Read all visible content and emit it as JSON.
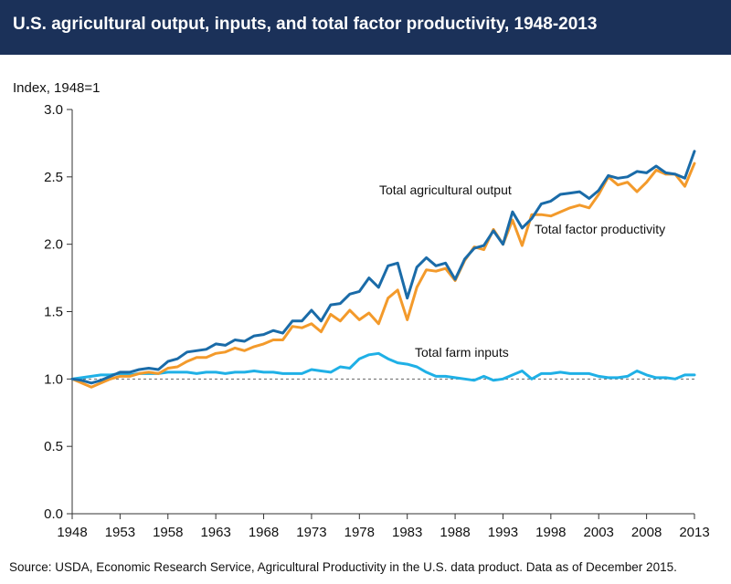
{
  "chart_data": {
    "type": "line",
    "title": "U.S. agricultural output, inputs, and total factor productivity, 1948-2013",
    "ylabel": "Index, 1948=1",
    "xlabel": "",
    "xlim": [
      1948,
      2013
    ],
    "ylim": [
      0,
      3
    ],
    "x_ticks": [
      1948,
      1953,
      1958,
      1963,
      1968,
      1973,
      1978,
      1983,
      1988,
      1993,
      1998,
      2003,
      2008,
      2013
    ],
    "y_ticks": [
      "0.0",
      "0.5",
      "1.0",
      "1.5",
      "2.0",
      "2.5",
      "3.0"
    ],
    "reference_line": 1.0,
    "x": [
      1948,
      1949,
      1950,
      1951,
      1952,
      1953,
      1954,
      1955,
      1956,
      1957,
      1958,
      1959,
      1960,
      1961,
      1962,
      1963,
      1964,
      1965,
      1966,
      1967,
      1968,
      1969,
      1970,
      1971,
      1972,
      1973,
      1974,
      1975,
      1976,
      1977,
      1978,
      1979,
      1980,
      1981,
      1982,
      1983,
      1984,
      1985,
      1986,
      1987,
      1988,
      1989,
      1990,
      1991,
      1992,
      1993,
      1994,
      1995,
      1996,
      1997,
      1998,
      1999,
      2000,
      2001,
      2002,
      2003,
      2004,
      2005,
      2006,
      2007,
      2008,
      2009,
      2010,
      2011,
      2012,
      2013
    ],
    "series": [
      {
        "name": "Total agricultural output",
        "color": "#1a6ba8",
        "values": [
          1.0,
          0.99,
          0.97,
          0.99,
          1.02,
          1.05,
          1.05,
          1.07,
          1.08,
          1.07,
          1.13,
          1.15,
          1.2,
          1.21,
          1.22,
          1.26,
          1.25,
          1.29,
          1.28,
          1.32,
          1.33,
          1.36,
          1.34,
          1.43,
          1.43,
          1.51,
          1.43,
          1.55,
          1.56,
          1.63,
          1.65,
          1.75,
          1.68,
          1.84,
          1.86,
          1.6,
          1.83,
          1.9,
          1.84,
          1.86,
          1.74,
          1.89,
          1.97,
          1.99,
          2.1,
          2.0,
          2.24,
          2.12,
          2.19,
          2.3,
          2.32,
          2.37,
          2.38,
          2.39,
          2.34,
          2.4,
          2.51,
          2.49,
          2.5,
          2.54,
          2.53,
          2.58,
          2.53,
          2.52,
          2.49,
          2.69
        ]
      },
      {
        "name": "Total factor productivity",
        "color": "#f39a2b",
        "values": [
          1.0,
          0.97,
          0.94,
          0.97,
          1.0,
          1.02,
          1.02,
          1.04,
          1.05,
          1.04,
          1.08,
          1.09,
          1.13,
          1.16,
          1.16,
          1.19,
          1.2,
          1.23,
          1.21,
          1.24,
          1.26,
          1.29,
          1.29,
          1.39,
          1.38,
          1.41,
          1.35,
          1.48,
          1.43,
          1.51,
          1.44,
          1.49,
          1.41,
          1.6,
          1.66,
          1.44,
          1.68,
          1.81,
          1.8,
          1.82,
          1.73,
          1.88,
          1.98,
          1.96,
          2.11,
          2.0,
          2.18,
          1.99,
          2.22,
          2.22,
          2.21,
          2.24,
          2.27,
          2.29,
          2.27,
          2.37,
          2.5,
          2.44,
          2.46,
          2.39,
          2.46,
          2.55,
          2.52,
          2.52,
          2.43,
          2.6
        ]
      },
      {
        "name": "Total farm inputs",
        "color": "#1fb0e6",
        "values": [
          1.0,
          1.01,
          1.02,
          1.03,
          1.03,
          1.04,
          1.03,
          1.04,
          1.04,
          1.04,
          1.05,
          1.05,
          1.05,
          1.04,
          1.05,
          1.05,
          1.04,
          1.05,
          1.05,
          1.06,
          1.05,
          1.05,
          1.04,
          1.04,
          1.04,
          1.07,
          1.06,
          1.05,
          1.09,
          1.08,
          1.15,
          1.18,
          1.19,
          1.15,
          1.12,
          1.11,
          1.09,
          1.05,
          1.02,
          1.02,
          1.01,
          1.0,
          0.99,
          1.02,
          0.99,
          1.0,
          1.03,
          1.06,
          1.0,
          1.04,
          1.04,
          1.05,
          1.04,
          1.04,
          1.04,
          1.02,
          1.01,
          1.01,
          1.02,
          1.06,
          1.03,
          1.01,
          1.01,
          1.0,
          1.03,
          1.03
        ]
      }
    ],
    "labels": [
      {
        "text": "Total agricultural output",
        "series": 0
      },
      {
        "text": "Total factor productivity",
        "series": 1
      },
      {
        "text": "Total farm inputs",
        "series": 2
      }
    ]
  },
  "source": "Source: USDA, Economic Research Service, Agricultural Productivity in the U.S. data product. Data as of December 2015."
}
